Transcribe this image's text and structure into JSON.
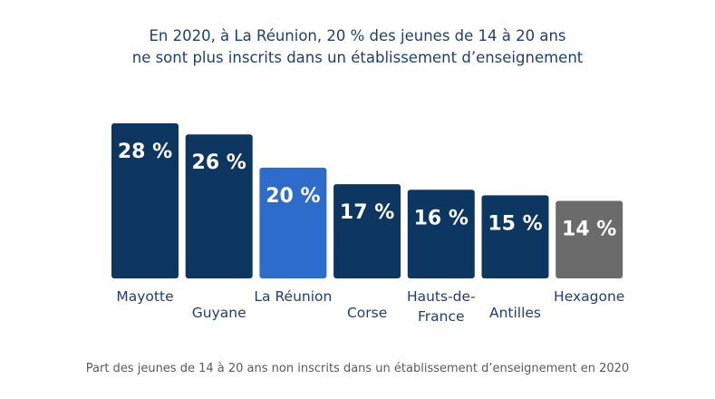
{
  "chart_data": {
    "type": "bar",
    "title": "En 2020, à La Réunion, 20 % des jeunes de 14 à 20 ans ne sont plus inscrits dans un établissement d’enseignement",
    "title_lines": [
      "En 2020, à La Réunion, 20 % des jeunes de 14 à 20 ans",
      "ne sont plus inscrits dans un établissement d’enseignement"
    ],
    "caption": "Part des jeunes de 14 à 20 ans non inscrits dans un établissement d’enseignement en 2020",
    "categories": [
      [
        "Mayotte"
      ],
      [
        "Guyane"
      ],
      [
        "La Réunion"
      ],
      [
        "Corse"
      ],
      [
        "Hauts-de-",
        "France"
      ],
      [
        "Antilles"
      ],
      [
        "Hexagone"
      ]
    ],
    "values": [
      28,
      26,
      20,
      17,
      16,
      15,
      14
    ],
    "value_labels": [
      "28 %",
      "26 %",
      "20 %",
      "17 %",
      "16 %",
      "15 %",
      "14 %"
    ],
    "colors": [
      "#0d3660",
      "#0d3660",
      "#2e6ccb",
      "#0d3660",
      "#0d3660",
      "#0d3660",
      "#6b6b6b"
    ],
    "label_color": "#1f3f73",
    "value_label_color": "#ffffff",
    "ylim": [
      0,
      28
    ],
    "grid": false,
    "legend": "none"
  }
}
